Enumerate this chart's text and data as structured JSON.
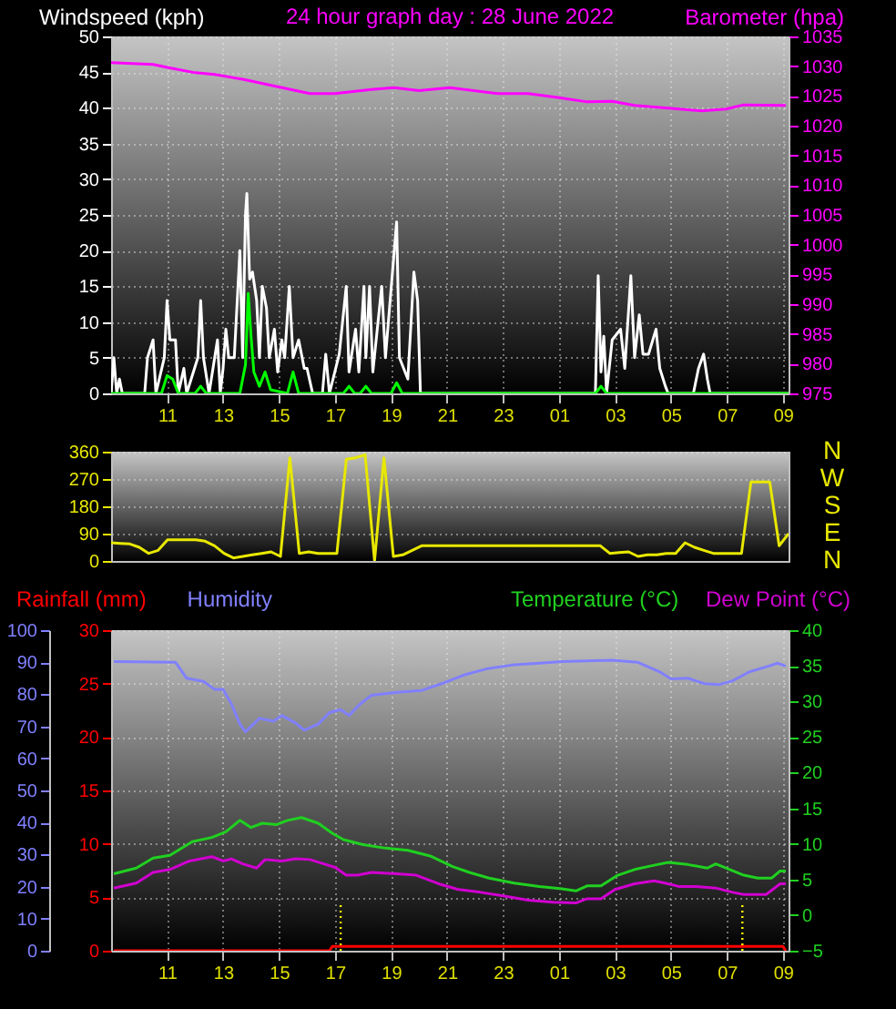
{
  "chart_data": [
    {
      "type": "line",
      "title": "24 hour graph day : 28 June 2022",
      "ylabel": "Windspeed (kph)",
      "y2label": "Barometer (hpa)",
      "xlim": [
        "2022-06-27T09:00",
        "2022-06-28T09:12"
      ],
      "xticks": [
        {
          "value": "2022-06-27T11:00",
          "label": "11"
        },
        {
          "value": "2022-06-27T13:00",
          "label": "13"
        },
        {
          "value": "2022-06-27T15:00",
          "label": "15"
        },
        {
          "value": "2022-06-27T17:00",
          "label": "17"
        },
        {
          "value": "2022-06-27T19:00",
          "label": "19"
        },
        {
          "value": "2022-06-27T21:00",
          "label": "21"
        },
        {
          "value": "2022-06-27T23:00",
          "label": "23"
        },
        {
          "value": "2022-06-28T01:00",
          "label": "01"
        },
        {
          "value": "2022-06-28T03:00",
          "label": "03"
        },
        {
          "value": "2022-06-28T05:00",
          "label": "05"
        },
        {
          "value": "2022-06-28T07:00",
          "label": "07"
        },
        {
          "value": "2022-06-28T09:00",
          "label": "09"
        }
      ],
      "ylim": [
        0,
        50
      ],
      "yticks": [
        0,
        5,
        10,
        15,
        20,
        25,
        30,
        35,
        40,
        45,
        50
      ],
      "y2lim": [
        975,
        1035
      ],
      "y2ticks": [
        975,
        980,
        985,
        990,
        995,
        1000,
        1005,
        1010,
        1015,
        1020,
        1025,
        1030,
        1035
      ],
      "grid": true,
      "series": [
        {
          "color": "#ffffff",
          "x": [
            "2022-06-27T09:00",
            "2022-06-27T09:06",
            "2022-06-27T09:12",
            "2022-06-27T09:18",
            "2022-06-27T09:24",
            "2022-06-27T10:12",
            "2022-06-27T10:18",
            "2022-06-27T10:30",
            "2022-06-27T10:36",
            "2022-06-27T10:54",
            "2022-06-27T11:00",
            "2022-06-27T11:06",
            "2022-06-27T11:18",
            "2022-06-27T11:24",
            "2022-06-27T11:36",
            "2022-06-27T11:42",
            "2022-06-27T12:06",
            "2022-06-27T12:12",
            "2022-06-27T12:18",
            "2022-06-27T12:30",
            "2022-06-27T12:48",
            "2022-06-27T12:54",
            "2022-06-27T13:00",
            "2022-06-27T13:06",
            "2022-06-27T13:12",
            "2022-06-27T13:24",
            "2022-06-27T13:36",
            "2022-06-27T13:42",
            "2022-06-27T13:48",
            "2022-06-27T13:51",
            "2022-06-27T13:57",
            "2022-06-27T14:03",
            "2022-06-27T14:12",
            "2022-06-27T14:18",
            "2022-06-27T14:24",
            "2022-06-27T14:33",
            "2022-06-27T14:39",
            "2022-06-27T14:50",
            "2022-06-27T14:57",
            "2022-06-27T15:06",
            "2022-06-27T15:12",
            "2022-06-27T15:22",
            "2022-06-27T15:30",
            "2022-06-27T15:42",
            "2022-06-27T15:54",
            "2022-06-27T16:00",
            "2022-06-27T16:12",
            "2022-06-27T16:33",
            "2022-06-27T16:40",
            "2022-06-27T16:48",
            "2022-06-27T17:09",
            "2022-06-27T17:24",
            "2022-06-27T17:30",
            "2022-06-27T17:44",
            "2022-06-27T17:51",
            "2022-06-27T18:02",
            "2022-06-27T18:06",
            "2022-06-27T18:14",
            "2022-06-27T18:21",
            "2022-06-27T18:40",
            "2022-06-27T18:48",
            "2022-06-27T19:05",
            "2022-06-27T19:12",
            "2022-06-27T19:18",
            "2022-06-27T19:36",
            "2022-06-27T19:49",
            "2022-06-27T19:57",
            "2022-06-27T20:03",
            "2022-06-28T02:18",
            "2022-06-28T02:24",
            "2022-06-28T02:30",
            "2022-06-28T02:36",
            "2022-06-28T02:42",
            "2022-06-28T02:54",
            "2022-06-28T03:12",
            "2022-06-28T03:21",
            "2022-06-28T03:34",
            "2022-06-28T03:42",
            "2022-06-28T03:52",
            "2022-06-28T04:00",
            "2022-06-28T04:12",
            "2022-06-28T04:28",
            "2022-06-28T04:36",
            "2022-06-28T04:48",
            "2022-06-28T04:54",
            "2022-06-28T05:48",
            "2022-06-28T05:59",
            "2022-06-28T06:10",
            "2022-06-28T06:18",
            "2022-06-28T06:24",
            "2022-06-28T09:12"
          ],
          "values": [
            0,
            5,
            0,
            2,
            0,
            0,
            5,
            7.5,
            0,
            5,
            13,
            7.5,
            7.5,
            0,
            3.5,
            0,
            5,
            13,
            5,
            0,
            7.5,
            0,
            3.5,
            9,
            5,
            5,
            20,
            5,
            25,
            28,
            16,
            17,
            13,
            5,
            15,
            12,
            5,
            9,
            3,
            7.5,
            5,
            15,
            5,
            7.5,
            3.5,
            3.5,
            0,
            0,
            5.5,
            0,
            5.5,
            15,
            3,
            9,
            3,
            15,
            5,
            15,
            3,
            15,
            5,
            18.5,
            24,
            5,
            2,
            17,
            13,
            0,
            0,
            16.5,
            3,
            8,
            0,
            7.5,
            9,
            3.5,
            16.5,
            5,
            11,
            5.5,
            5.5,
            9,
            3.5,
            1,
            0,
            0,
            3.5,
            5.5,
            2,
            0,
            0
          ]
        },
        {
          "color": "#00ff00",
          "x": [
            "2022-06-27T09:00",
            "2022-06-27T10:48",
            "2022-06-27T11:00",
            "2022-06-27T11:12",
            "2022-06-27T11:24",
            "2022-06-27T12:00",
            "2022-06-27T12:12",
            "2022-06-27T12:24",
            "2022-06-27T13:36",
            "2022-06-27T13:48",
            "2022-06-27T13:54",
            "2022-06-27T14:00",
            "2022-06-27T14:06",
            "2022-06-27T14:18",
            "2022-06-27T14:30",
            "2022-06-27T14:42",
            "2022-06-27T15:18",
            "2022-06-27T15:30",
            "2022-06-27T15:42",
            "2022-06-27T17:18",
            "2022-06-27T17:30",
            "2022-06-27T17:42",
            "2022-06-27T17:54",
            "2022-06-27T18:06",
            "2022-06-27T18:18",
            "2022-06-27T19:00",
            "2022-06-27T19:12",
            "2022-06-27T19:24",
            "2022-06-27T19:54",
            "2022-06-28T02:18",
            "2022-06-28T02:30",
            "2022-06-28T02:42",
            "2022-06-28T09:12"
          ],
          "values": [
            0,
            0,
            2.5,
            2,
            0,
            0,
            1,
            0,
            0,
            4,
            14,
            8,
            3,
            1,
            3,
            0.5,
            0,
            3,
            0,
            0,
            1,
            0,
            0,
            1,
            0,
            0,
            1.5,
            0,
            0,
            0,
            1,
            0,
            0
          ]
        },
        {
          "color": "#ff00ff",
          "axis": "y2",
          "x": [
            "2022-06-27T09:00",
            "2022-06-27T10:30",
            "2022-06-27T11:00",
            "2022-06-27T12:00",
            "2022-06-27T12:42",
            "2022-06-27T13:42",
            "2022-06-27T14:48",
            "2022-06-27T16:06",
            "2022-06-27T17:00",
            "2022-06-27T18:18",
            "2022-06-27T19:06",
            "2022-06-27T20:00",
            "2022-06-27T21:06",
            "2022-06-27T22:48",
            "2022-06-27T23:54",
            "2022-06-28T01:00",
            "2022-06-28T02:00",
            "2022-06-28T02:54",
            "2022-06-28T03:42",
            "2022-06-28T05:00",
            "2022-06-28T06:06",
            "2022-06-28T06:58",
            "2022-06-28T07:36",
            "2022-06-28T09:06"
          ],
          "values": [
            1030.6,
            1030.3,
            1029.8,
            1028.9,
            1028.6,
            1027.8,
            1026.7,
            1025.4,
            1025.4,
            1026.1,
            1026.4,
            1025.9,
            1026.4,
            1025.4,
            1025.4,
            1024.7,
            1024,
            1024.1,
            1023.4,
            1022.9,
            1022.5,
            1022.8,
            1023.5,
            1023.4
          ]
        }
      ]
    },
    {
      "type": "line",
      "tick_labels": "y",
      "categories": [
        null,
        null,
        null,
        null,
        null,
        null,
        null,
        null,
        null,
        null,
        null,
        null,
        null,
        null,
        null,
        null,
        null,
        null,
        null,
        null,
        null,
        null,
        null,
        null,
        null,
        null,
        null,
        null,
        null,
        null,
        null,
        null,
        null,
        null,
        null,
        null,
        null,
        null,
        null,
        null,
        null,
        null,
        null,
        null,
        null,
        null,
        null,
        null,
        null,
        null,
        null,
        null,
        null,
        null,
        null,
        null,
        null,
        null,
        null,
        null,
        null,
        null,
        null,
        null,
        null,
        null,
        null,
        null,
        null,
        null,
        null,
        null,
        null
      ],
      "ylim": [
        0,
        360
      ],
      "yticks": [
        0,
        90,
        180,
        270,
        360
      ],
      "annotations": [
        "N",
        "W",
        "S",
        "E",
        "N"
      ],
      "grid": "y",
      "series": [
        {
          "color": "#e8e800",
          "values": [
            60,
            58,
            56,
            45,
            25,
            35,
            70,
            70,
            70,
            70,
            65,
            50,
            25,
            10,
            15,
            20,
            25,
            30,
            15,
            340,
            25,
            30,
            25,
            25,
            25,
            335,
            340,
            350,
            0,
            340,
            15,
            20,
            35,
            50,
            50,
            50,
            50,
            50,
            50,
            50,
            50,
            50,
            50,
            50,
            50,
            50,
            50,
            50,
            50,
            50,
            50,
            50,
            50,
            25,
            28,
            30,
            15,
            20,
            20,
            25,
            25,
            60,
            45,
            35,
            25,
            25,
            25,
            25,
            260,
            260,
            260,
            50,
            90
          ]
        }
      ]
    },
    {
      "type": "line",
      "legend": "top",
      "xlim": [
        "2022-06-27T09:00",
        "2022-06-28T09:12"
      ],
      "xticks": [
        {
          "value": "2022-06-27T11:00",
          "label": "11"
        },
        {
          "value": "2022-06-27T13:00",
          "label": "13"
        },
        {
          "value": "2022-06-27T15:00",
          "label": "15"
        },
        {
          "value": "2022-06-27T17:00",
          "label": "17"
        },
        {
          "value": "2022-06-27T19:00",
          "label": "19"
        },
        {
          "value": "2022-06-27T21:00",
          "label": "21"
        },
        {
          "value": "2022-06-27T23:00",
          "label": "23"
        },
        {
          "value": "2022-06-28T01:00",
          "label": "01"
        },
        {
          "value": "2022-06-28T03:00",
          "label": "03"
        },
        {
          "value": "2022-06-28T05:00",
          "label": "05"
        },
        {
          "value": "2022-06-28T07:00",
          "label": "07"
        },
        {
          "value": "2022-06-28T09:00",
          "label": "09"
        }
      ],
      "ylim": [
        0,
        30
      ],
      "yticks": [
        0,
        5,
        10,
        15,
        20,
        25,
        30
      ],
      "y3lim": [
        0,
        100
      ],
      "y3ticks": [
        0,
        10,
        20,
        30,
        40,
        50,
        60,
        70,
        80,
        90,
        100
      ],
      "y2lim": [
        -5,
        40
      ],
      "y2ticks": [
        -5,
        0,
        5,
        10,
        15,
        20,
        25,
        30,
        35,
        40
      ],
      "grid": true,
      "ref_lines": [
        {
          "axis": "x",
          "value": "2022-06-27T17:12",
          "color": "#ffff00",
          "line_style": "dotted"
        },
        {
          "axis": "x",
          "value": "2022-06-28T07:33",
          "color": "#ffff00",
          "line_style": "dotted"
        }
      ],
      "series": [
        {
          "name": "Rainfall (mm)",
          "color": "#ff0000",
          "x": [
            "2022-06-27T09:06",
            "2022-06-27T16:48",
            "2022-06-27T16:54",
            "2022-06-28T09:00",
            "2022-06-28T09:06"
          ],
          "values": [
            0,
            0,
            0.4,
            0.4,
            0
          ]
        },
        {
          "name": "Humidity",
          "color": "#8080ff",
          "axis": "y3",
          "x": [
            "2022-06-27T09:06",
            "2022-06-27T11:18",
            "2022-06-27T11:42",
            "2022-06-27T12:18",
            "2022-06-27T12:42",
            "2022-06-27T13:00",
            "2022-06-27T13:18",
            "2022-06-27T13:36",
            "2022-06-27T13:48",
            "2022-06-27T14:18",
            "2022-06-27T14:48",
            "2022-06-27T15:06",
            "2022-06-27T15:36",
            "2022-06-27T15:54",
            "2022-06-27T16:24",
            "2022-06-27T16:48",
            "2022-06-27T17:12",
            "2022-06-27T17:30",
            "2022-06-27T17:54",
            "2022-06-27T18:18",
            "2022-06-27T19:12",
            "2022-06-27T20:06",
            "2022-06-27T20:48",
            "2022-06-27T21:36",
            "2022-06-27T22:24",
            "2022-06-27T23:18",
            "2022-06-28T00:18",
            "2022-06-28T01:06",
            "2022-06-28T02:54",
            "2022-06-28T03:48",
            "2022-06-28T04:36",
            "2022-06-28T05:00",
            "2022-06-28T05:36",
            "2022-06-28T06:12",
            "2022-06-28T06:42",
            "2022-06-28T07:12",
            "2022-06-28T07:48",
            "2022-06-28T08:30",
            "2022-06-28T08:48",
            "2022-06-28T09:06"
          ],
          "values": [
            90.2,
            90,
            85,
            84,
            81.5,
            81.5,
            77,
            70.7,
            68.3,
            72.5,
            71.6,
            73.4,
            71,
            68.8,
            70.7,
            74.3,
            75.2,
            73.4,
            77,
            79.7,
            80.6,
            81.2,
            83.3,
            86,
            87.9,
            89.1,
            89.7,
            90.2,
            90.6,
            90,
            87,
            84.8,
            85,
            83.3,
            83,
            84.2,
            87,
            88.8,
            89.7,
            88.8
          ]
        },
        {
          "name": "Temperature (°C)",
          "color": "#20d020",
          "axis": "y2",
          "x": [
            "2022-06-27T09:06",
            "2022-06-27T09:54",
            "2022-06-27T10:30",
            "2022-06-27T11:06",
            "2022-06-27T11:54",
            "2022-06-27T12:36",
            "2022-06-27T13:06",
            "2022-06-27T13:36",
            "2022-06-27T14:00",
            "2022-06-27T14:24",
            "2022-06-27T14:54",
            "2022-06-27T15:18",
            "2022-06-27T15:48",
            "2022-06-27T16:24",
            "2022-06-27T16:54",
            "2022-06-27T17:18",
            "2022-06-27T18:00",
            "2022-06-27T18:48",
            "2022-06-27T19:36",
            "2022-06-27T20:24",
            "2022-06-27T21:12",
            "2022-06-27T21:48",
            "2022-06-27T22:30",
            "2022-06-27T23:24",
            "2022-06-28T00:18",
            "2022-06-28T01:06",
            "2022-06-28T01:36",
            "2022-06-28T02:00",
            "2022-06-28T02:30",
            "2022-06-28T03:06",
            "2022-06-28T03:42",
            "2022-06-28T04:24",
            "2022-06-28T04:54",
            "2022-06-28T05:36",
            "2022-06-28T06:18",
            "2022-06-28T06:36",
            "2022-06-28T07:06",
            "2022-06-28T07:36",
            "2022-06-28T08:06",
            "2022-06-28T08:36",
            "2022-06-28T08:54",
            "2022-06-28T09:06"
          ],
          "values": [
            5.8,
            6.6,
            8,
            8.4,
            10.3,
            10.9,
            11.7,
            13.3,
            12.3,
            12.9,
            12.7,
            13.3,
            13.7,
            12.9,
            11.5,
            10.6,
            9.9,
            9.4,
            9.1,
            8.3,
            6.8,
            6,
            5.2,
            4.5,
            4,
            3.7,
            3.4,
            4.1,
            4.1,
            5.6,
            6.4,
            7,
            7.4,
            7.1,
            6.6,
            7.2,
            6.4,
            5.6,
            5.2,
            5.2,
            6.2,
            6.2
          ]
        },
        {
          "name": "Dew Point (°C)",
          "color": "#d000d0",
          "axis": "y2",
          "x": [
            "2022-06-27T09:06",
            "2022-06-27T09:54",
            "2022-06-27T10:30",
            "2022-06-27T11:06",
            "2022-06-27T11:48",
            "2022-06-27T12:36",
            "2022-06-27T13:00",
            "2022-06-27T13:18",
            "2022-06-27T13:42",
            "2022-06-27T14:12",
            "2022-06-27T14:30",
            "2022-06-27T15:06",
            "2022-06-27T15:36",
            "2022-06-27T16:06",
            "2022-06-27T16:36",
            "2022-06-27T17:00",
            "2022-06-27T17:24",
            "2022-06-27T17:48",
            "2022-06-27T18:18",
            "2022-06-27T19:12",
            "2022-06-27T19:54",
            "2022-06-27T20:42",
            "2022-06-27T21:24",
            "2022-06-27T22:12",
            "2022-06-27T23:00",
            "2022-06-27T23:54",
            "2022-06-28T00:48",
            "2022-06-28T01:36",
            "2022-06-28T02:00",
            "2022-06-28T02:30",
            "2022-06-28T03:00",
            "2022-06-28T03:42",
            "2022-06-28T04:24",
            "2022-06-28T04:54",
            "2022-06-28T05:18",
            "2022-06-28T05:54",
            "2022-06-28T06:36",
            "2022-06-28T07:12",
            "2022-06-28T07:36",
            "2022-06-28T08:24",
            "2022-06-28T08:54",
            "2022-06-28T09:06"
          ],
          "values": [
            3.8,
            4.5,
            6,
            6.4,
            7.6,
            8.2,
            7.6,
            7.9,
            7.2,
            6.6,
            7.8,
            7.6,
            7.9,
            7.8,
            7.2,
            6.7,
            5.6,
            5.6,
            6,
            5.8,
            5.6,
            4.4,
            3.6,
            3.2,
            2.7,
            2.1,
            1.8,
            1.7,
            2.3,
            2.3,
            3.6,
            4.4,
            4.8,
            4.4,
            4,
            4,
            3.8,
            3.2,
            2.9,
            2.9,
            4.4,
            4.4
          ]
        }
      ]
    }
  ]
}
